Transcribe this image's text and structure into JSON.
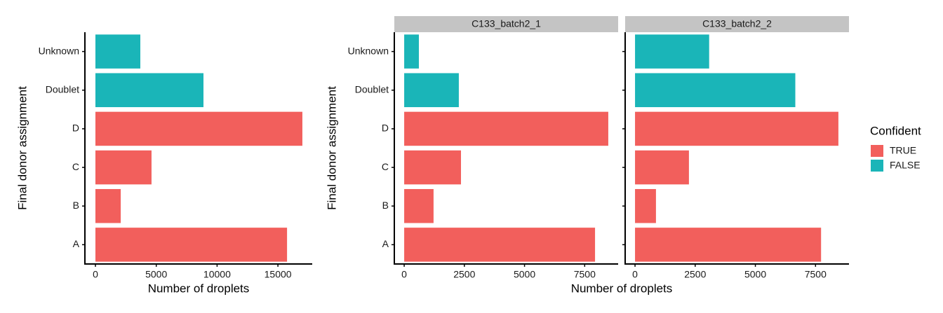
{
  "chart_data": [
    {
      "type": "bar",
      "orientation": "horizontal",
      "y_label": "Final donor assignment",
      "x_label": "Number of droplets",
      "categories": [
        "A",
        "B",
        "C",
        "D",
        "Doublet",
        "Unknown"
      ],
      "series": [
        {
          "color": "#f25f5c",
          "values": [
            15750,
            2080,
            4610,
            17010,
            null,
            null
          ]
        },
        {
          "color": "#1ab5b8",
          "values": [
            null,
            null,
            null,
            null,
            8880,
            3690
          ]
        }
      ],
      "xlim": [
        -865,
        17820
      ],
      "xticks": [
        0,
        5000,
        10000,
        15000
      ]
    },
    {
      "type": "bar",
      "orientation": "horizontal",
      "y_label": "Final donor assignment",
      "x_label": "Number of droplets",
      "categories": [
        "A",
        "B",
        "C",
        "D",
        "Doublet",
        "Unknown"
      ],
      "legend": {
        "title": "Confident",
        "entries": [
          {
            "name": "TRUE",
            "color": "#f25f5c"
          },
          {
            "name": "FALSE",
            "color": "#1ab5b8"
          }
        ]
      },
      "facets": [
        {
          "title": "C133_batch2_1",
          "series": [
            {
              "color": "#f25f5c",
              "values": [
                7930,
                1220,
                2360,
                8480,
                null,
                null
              ]
            },
            {
              "color": "#1ab5b8",
              "values": [
                null,
                null,
                null,
                null,
                2270,
                610
              ]
            }
          ]
        },
        {
          "title": "C133_batch2_2",
          "series": [
            {
              "color": "#f25f5c",
              "values": [
                7730,
                870,
                2240,
                8450,
                null,
                null
              ]
            },
            {
              "color": "#1ab5b8",
              "values": [
                null,
                null,
                null,
                null,
                6660,
                3080
              ]
            }
          ]
        }
      ],
      "xlim": [
        -410,
        8890
      ],
      "xticks": [
        0,
        2500,
        5000,
        7500
      ]
    }
  ]
}
